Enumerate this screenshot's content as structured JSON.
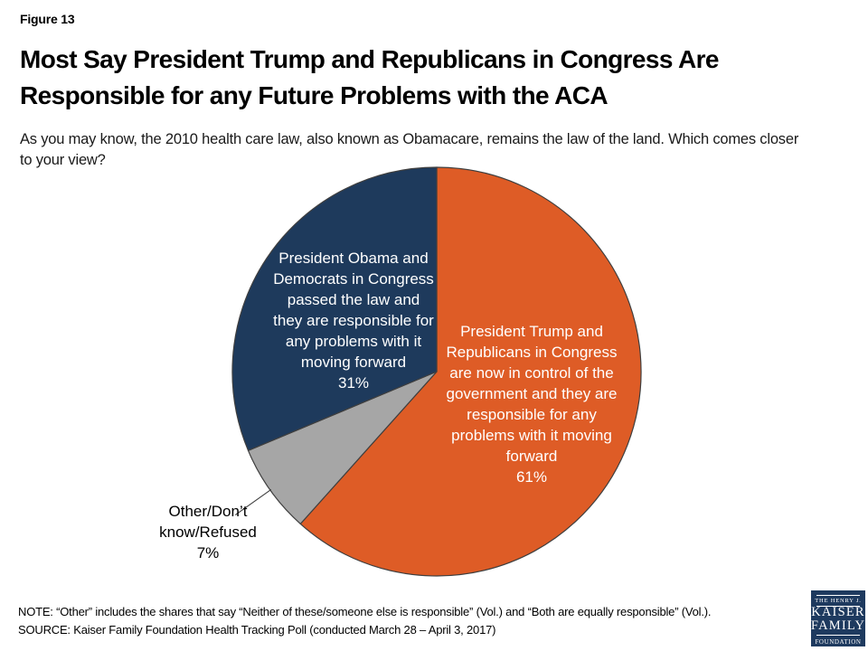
{
  "figure_label": "Figure 13",
  "title": {
    "line1": "Most Say President Trump and Republicans in Congress Are",
    "line2": "Responsible for any Future Problems with the ACA"
  },
  "subtitle": {
    "line1": "As you may know, the 2010 health care law, also known as Obamacare, remains the law of the land. Which comes closer",
    "line2": "to your view?"
  },
  "chart_data": {
    "type": "pie",
    "start_angle_deg": 0,
    "direction": "clockwise",
    "outline_color": "#3f3f3f",
    "segments": [
      {
        "id": "trump",
        "label": "President Trump and Republicans in Congress are now in control of the government and they are responsible for any problems with it moving forward",
        "value": 61,
        "unit": "%",
        "color": "#de5c26",
        "text_color": "#ffffff",
        "callout": false
      },
      {
        "id": "other",
        "label": "Other/Don’t know/Refused",
        "value": 7,
        "unit": "%",
        "color": "#a6a6a6",
        "text_color": "#000000",
        "callout": true
      },
      {
        "id": "obama",
        "label": "President Obama and Democrats in Congress passed the law and they are responsible for any problems with it moving forward",
        "value": 31,
        "unit": "%",
        "color": "#1e3a5c",
        "text_color": "#ffffff",
        "callout": false
      }
    ]
  },
  "pie_labels": {
    "trump_lines": [
      "President Trump and",
      "Republicans in Congress",
      "are now in control of the",
      "government and they are",
      "responsible for any",
      "problems with it moving",
      "forward",
      "61%"
    ],
    "obama_lines": [
      "President Obama and",
      "Democrats in Congress",
      "passed the law and",
      "they are responsible for",
      "any problems with it",
      "moving forward",
      "31%"
    ],
    "other_lines": [
      "Other/Don’t",
      "know/Refused",
      "7%"
    ]
  },
  "footer": {
    "note": "NOTE: “Other” includes the shares that say “Neither of these/someone else is responsible” (Vol.) and “Both are equally responsible” (Vol.).",
    "source": "SOURCE: Kaiser Family Foundation Health Tracking Poll (conducted March 28 – April 3, 2017)"
  },
  "logo": {
    "top_text": "THE HENRY J.",
    "name_line1": "KAISER",
    "name_line2": "FAMILY",
    "bottom_text": "FOUNDATION",
    "bg_color": "#1e3a5f"
  }
}
